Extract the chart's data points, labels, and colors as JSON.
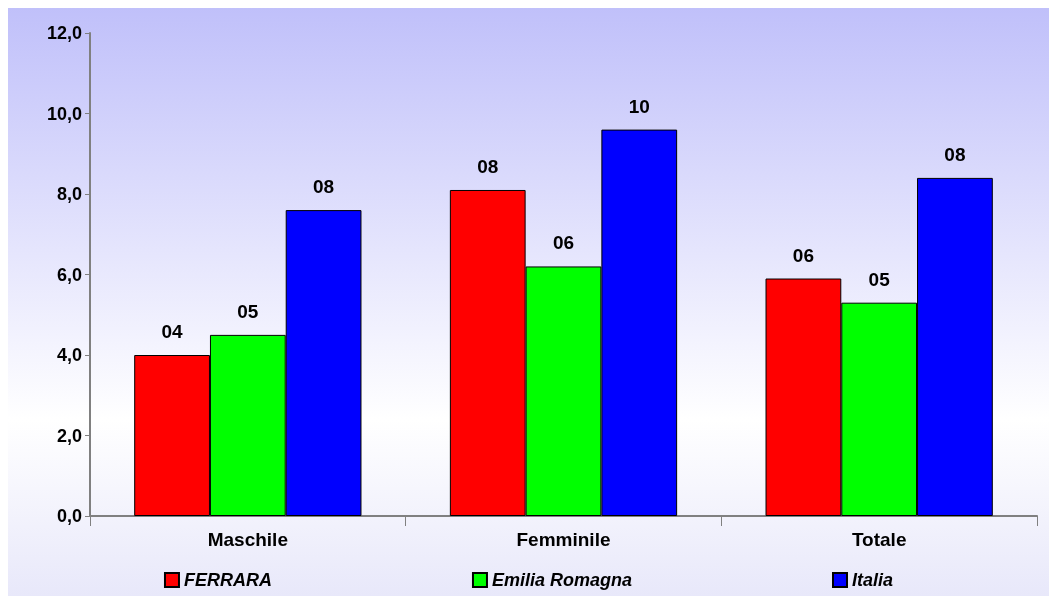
{
  "chart_data": {
    "type": "bar",
    "categories": [
      "Maschile",
      "Femminile",
      "Totale"
    ],
    "series": [
      {
        "name": "FERRARA",
        "color": "#ff0000",
        "values": [
          4.0,
          8.1,
          5.9
        ],
        "value_labels": [
          "04",
          "08",
          "06"
        ]
      },
      {
        "name": "Emilia Romagna",
        "color": "#00ff00",
        "values": [
          4.5,
          6.2,
          5.3
        ],
        "value_labels": [
          "05",
          "06",
          "05"
        ]
      },
      {
        "name": "Italia",
        "color": "#0000ff",
        "values": [
          7.6,
          9.6,
          8.4
        ],
        "value_labels": [
          "08",
          "10",
          "08"
        ]
      }
    ],
    "ylim": [
      0,
      12
    ],
    "yticks": [
      {
        "value": 0,
        "label": "0,0"
      },
      {
        "value": 2,
        "label": "2,0"
      },
      {
        "value": 4,
        "label": "4,0"
      },
      {
        "value": 6,
        "label": "6,0"
      },
      {
        "value": 8,
        "label": "8,0"
      },
      {
        "value": 10,
        "label": "10,0"
      },
      {
        "value": 12,
        "label": "12,0"
      }
    ],
    "grid": false,
    "legend": "bottom"
  }
}
